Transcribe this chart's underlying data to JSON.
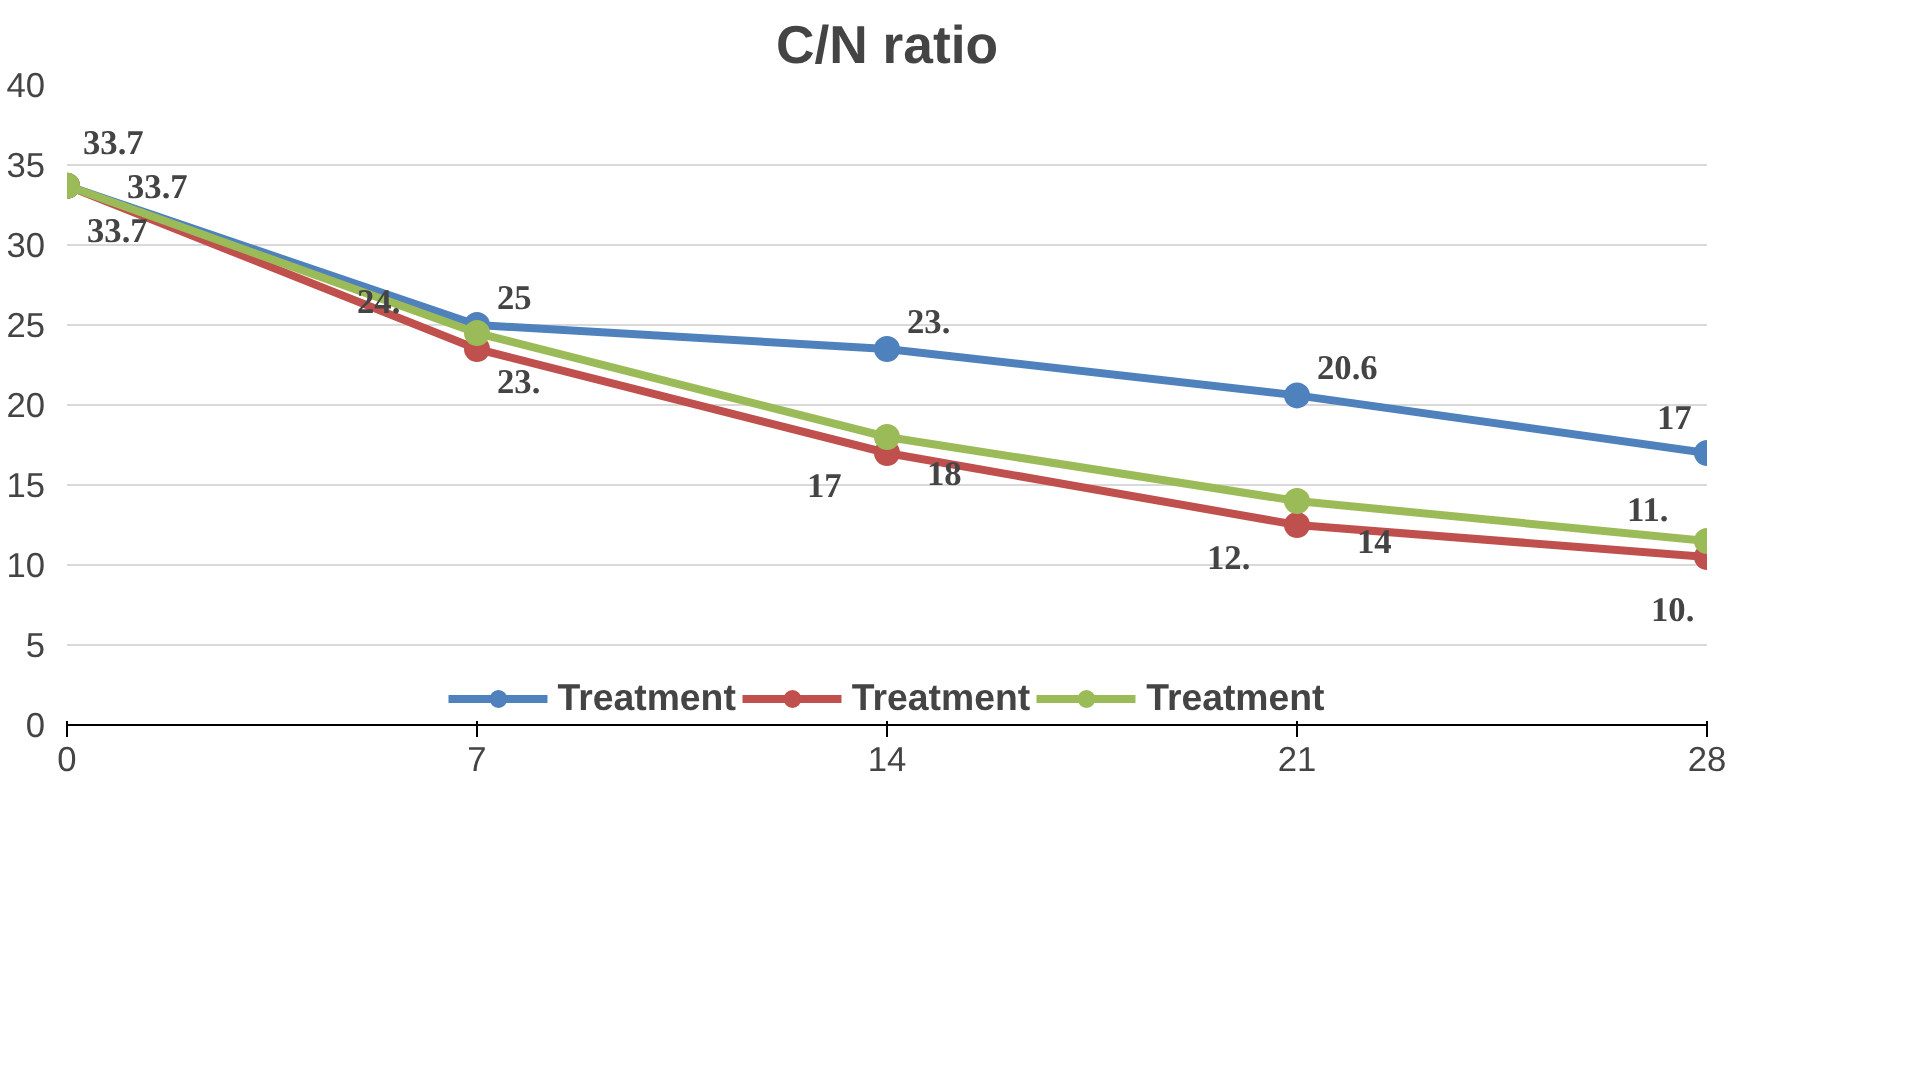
{
  "chart_data": {
    "type": "line",
    "title": "C/N ratio",
    "x": [
      0,
      7,
      14,
      21,
      28
    ],
    "xlim": [
      0,
      28
    ],
    "xticks": [
      0,
      7,
      14,
      21,
      28
    ],
    "ylim": [
      0,
      40
    ],
    "yticks": [
      0,
      5,
      10,
      15,
      20,
      25,
      30,
      35,
      40
    ],
    "grid": "y",
    "legend": "bottom",
    "marker": "circle",
    "line_style": "solid",
    "series": [
      {
        "name": "Treatment",
        "color": "#4f81bd",
        "values": [
          33.7,
          25,
          23.5,
          20.6,
          17
        ],
        "value_labels": [
          "33.7",
          "25",
          "23.",
          "20.6",
          "17"
        ]
      },
      {
        "name": "Treatment",
        "color": "#c0504d",
        "values": [
          33.7,
          23.5,
          17,
          12.5,
          10.5
        ],
        "value_labels": [
          "33.7",
          "23.",
          "17",
          "12.",
          "10."
        ]
      },
      {
        "name": "Treatment",
        "color": "#9bbb59",
        "values": [
          33.7,
          24.5,
          18,
          14,
          11.5
        ],
        "value_labels": [
          "33.7",
          "24.",
          "18",
          "14",
          "11."
        ]
      }
    ]
  }
}
